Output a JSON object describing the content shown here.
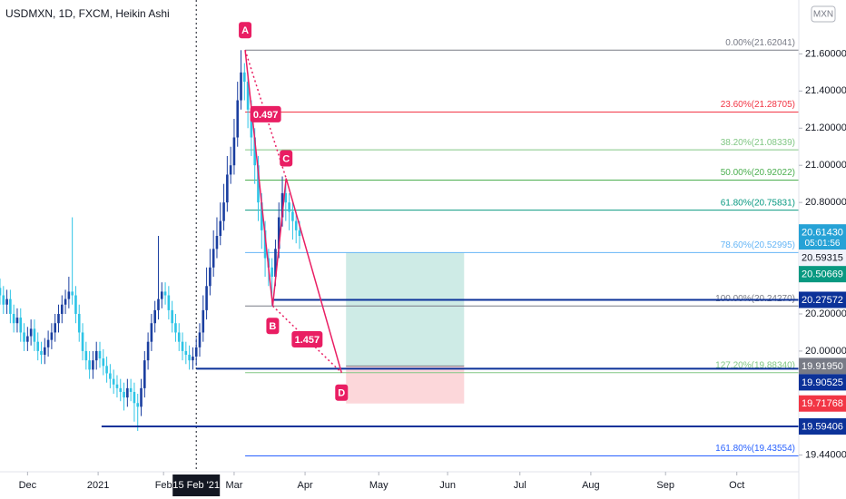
{
  "chart_data": {
    "type": "candlestick",
    "title": "USDMXN, 1D, FXCM, Heikin Ashi",
    "currency": "MXN",
    "up_color": "#1b3fa0",
    "down_color": "#2ec4e6",
    "xlim": [
      0,
      232
    ],
    "ylim": [
      19.35,
      21.89
    ],
    "x": [
      0,
      1,
      2,
      3,
      4,
      5,
      6,
      7,
      8,
      9,
      10,
      11,
      12,
      13,
      14,
      15,
      16,
      17,
      18,
      19,
      20,
      21,
      22,
      23,
      24,
      25,
      26,
      27,
      28,
      29,
      30,
      31,
      32,
      33,
      34,
      35,
      36,
      37,
      38,
      39,
      40,
      41,
      42,
      43,
      44,
      45,
      46,
      47,
      48,
      49,
      50,
      51,
      52,
      53,
      54,
      55,
      56,
      57,
      58,
      59,
      60,
      61,
      62,
      63,
      64,
      65,
      66,
      67,
      68,
      69,
      70,
      71,
      72,
      73,
      74,
      75,
      76,
      77,
      78,
      79,
      80,
      81,
      82,
      83,
      84,
      85,
      86,
      87
    ],
    "open": [
      20.34,
      20.3,
      20.25,
      20.28,
      20.2,
      20.15,
      20.18,
      20.1,
      20.05,
      20.08,
      20.12,
      20.05,
      20.0,
      19.98,
      20.02,
      20.06,
      20.1,
      20.15,
      20.2,
      20.25,
      20.28,
      20.32,
      20.3,
      20.2,
      20.1,
      20.0,
      19.95,
      19.9,
      19.95,
      20.0,
      19.96,
      19.92,
      19.88,
      19.85,
      19.82,
      19.8,
      19.78,
      19.75,
      19.8,
      19.78,
      19.72,
      19.7,
      19.8,
      19.95,
      20.05,
      20.15,
      20.22,
      20.28,
      20.32,
      20.3,
      20.22,
      20.15,
      20.1,
      20.05,
      20.0,
      19.98,
      19.95,
      19.97,
      20.02,
      20.1,
      20.22,
      20.35,
      20.45,
      20.55,
      20.62,
      20.7,
      20.8,
      20.95,
      21.0,
      21.15,
      21.35,
      21.5,
      21.45,
      21.3,
      21.15,
      21.0,
      20.8,
      20.65,
      20.5,
      20.45,
      20.4,
      20.55,
      20.72,
      20.85,
      20.8,
      20.75,
      20.7,
      20.65
    ],
    "high": [
      20.39,
      20.35,
      20.33,
      20.33,
      20.25,
      20.23,
      20.23,
      20.15,
      20.13,
      20.17,
      20.17,
      20.1,
      20.05,
      20.07,
      20.11,
      20.15,
      20.2,
      20.25,
      20.3,
      20.33,
      20.4,
      20.72,
      20.35,
      20.25,
      20.15,
      20.05,
      20.0,
      20.0,
      20.05,
      20.05,
      20.01,
      19.97,
      19.93,
      19.9,
      19.87,
      19.85,
      19.83,
      19.85,
      19.85,
      19.83,
      19.77,
      19.85,
      20.0,
      20.1,
      20.2,
      20.27,
      20.62,
      20.37,
      20.37,
      20.35,
      20.27,
      20.2,
      20.15,
      20.1,
      20.05,
      20.03,
      20.02,
      20.07,
      20.15,
      20.3,
      20.45,
      20.55,
      20.65,
      20.72,
      20.8,
      20.9,
      21.05,
      21.1,
      21.25,
      21.45,
      21.62,
      21.55,
      21.5,
      21.35,
      21.2,
      21.05,
      20.85,
      20.7,
      20.55,
      20.5,
      20.6,
      20.8,
      20.94,
      20.9,
      20.85,
      20.8,
      20.75,
      20.7
    ],
    "low": [
      20.25,
      20.2,
      20.2,
      20.15,
      20.1,
      20.1,
      20.05,
      20.0,
      20.0,
      20.03,
      20.0,
      19.95,
      19.93,
      19.93,
      19.97,
      20.01,
      20.05,
      20.1,
      20.15,
      20.2,
      20.23,
      20.25,
      20.15,
      20.05,
      19.95,
      19.9,
      19.85,
      19.85,
      19.9,
      19.91,
      19.87,
      19.83,
      19.8,
      19.77,
      19.75,
      19.73,
      19.68,
      19.7,
      19.73,
      19.62,
      19.57,
      19.65,
      19.75,
      19.9,
      20.0,
      20.1,
      20.17,
      20.23,
      20.25,
      20.17,
      20.1,
      20.05,
      20.0,
      19.95,
      19.93,
      19.9,
      19.9,
      19.92,
      19.97,
      20.05,
      20.17,
      20.3,
      20.4,
      20.5,
      20.57,
      20.65,
      20.75,
      20.9,
      20.95,
      21.1,
      21.3,
      21.35,
      21.2,
      21.05,
      20.9,
      20.7,
      20.55,
      20.4,
      20.35,
      20.24,
      20.35,
      20.5,
      20.67,
      20.7,
      20.65,
      20.6,
      20.58,
      20.55
    ],
    "close": [
      20.3,
      20.25,
      20.28,
      20.2,
      20.15,
      20.18,
      20.1,
      20.05,
      20.08,
      20.12,
      20.05,
      20.0,
      19.98,
      20.02,
      20.06,
      20.1,
      20.15,
      20.2,
      20.25,
      20.28,
      20.32,
      20.3,
      20.2,
      20.1,
      20.0,
      19.95,
      19.9,
      19.95,
      20.0,
      19.96,
      19.92,
      19.88,
      19.85,
      19.82,
      19.8,
      19.78,
      19.75,
      19.8,
      19.78,
      19.72,
      19.7,
      19.8,
      19.95,
      20.05,
      20.15,
      20.22,
      20.28,
      20.32,
      20.3,
      20.22,
      20.15,
      20.1,
      20.05,
      20.0,
      19.98,
      19.95,
      19.97,
      20.02,
      20.1,
      20.22,
      20.35,
      20.45,
      20.55,
      20.62,
      20.7,
      20.8,
      20.95,
      21.0,
      21.15,
      21.35,
      21.5,
      21.45,
      21.3,
      21.15,
      21.0,
      20.8,
      20.65,
      20.5,
      20.45,
      20.4,
      20.55,
      20.72,
      20.85,
      20.8,
      20.75,
      20.7,
      20.65,
      20.62
    ],
    "yticks": [
      {
        "value": 21.6,
        "label": "21.60000"
      },
      {
        "value": 21.4,
        "label": "21.40000"
      },
      {
        "value": 21.2,
        "label": "21.20000"
      },
      {
        "value": 21.0,
        "label": "21.00000"
      },
      {
        "value": 20.8,
        "label": "20.80000"
      },
      {
        "value": 20.2,
        "label": "20.20000"
      },
      {
        "value": 20.0,
        "label": "20.00000"
      },
      {
        "value": 19.44,
        "label": "19.44000"
      }
    ],
    "xticks": [
      {
        "value": 8,
        "label": "Dec"
      },
      {
        "value": 28.5,
        "label": "2021"
      },
      {
        "value": 47.5,
        "label": "Feb"
      },
      {
        "value": 68,
        "label": "Mar"
      },
      {
        "value": 88.6,
        "label": "Apr"
      },
      {
        "value": 110,
        "label": "May"
      },
      {
        "value": 130,
        "label": "Jun"
      },
      {
        "value": 151,
        "label": "Jul"
      },
      {
        "value": 171.6,
        "label": "Aug"
      },
      {
        "value": 193.3,
        "label": "Sep"
      },
      {
        "value": 214,
        "label": "Oct"
      }
    ],
    "crosshair": {
      "x": 57,
      "label": "15 Feb '21"
    },
    "fib_levels": [
      {
        "value": 21.62041,
        "label": "0.00%(21.62041)",
        "color": "#787b86"
      },
      {
        "value": 21.28705,
        "label": "23.60%(21.28705)",
        "color": "#f23645"
      },
      {
        "value": 21.08339,
        "label": "38.20%(21.08339)",
        "color": "#81c784"
      },
      {
        "value": 20.92022,
        "label": "50.00%(20.92022)",
        "color": "#4caf50"
      },
      {
        "value": 20.75831,
        "label": "61.80%(20.75831)",
        "color": "#089981"
      },
      {
        "value": 20.52995,
        "label": "78.60%(20.52995)",
        "color": "#64b5f6"
      },
      {
        "value": 20.2427,
        "label": "100.00%(20.24270)",
        "color": "#787b86"
      },
      {
        "value": 19.8834,
        "label": "127.20%(19.88340)",
        "color": "#81c784"
      },
      {
        "value": 19.43554,
        "label": "161.80%(19.43554)",
        "color": "#2962ff"
      }
    ],
    "pattern": [
      {
        "label": "A",
        "x": 71.2,
        "value": 21.62041
      },
      {
        "label": "B",
        "x": 79.2,
        "value": 20.2427
      },
      {
        "label": "C",
        "x": 83.1,
        "value": 20.93
      },
      {
        "label": "D",
        "x": 99.2,
        "value": 19.8834
      }
    ],
    "ratios": [
      0.497,
      1.457
    ],
    "pattern_color": "#e91e63",
    "position": {
      "x_start": 100.5,
      "x_end": 134.8,
      "target": 20.53,
      "entry": 19.9195,
      "stop": 19.71768
    },
    "hlines": [
      {
        "value": 20.27572,
        "from": 79
      },
      {
        "value": 19.90525,
        "from": 57
      },
      {
        "value": 19.59406,
        "from": 29.5
      }
    ],
    "hline_color": "#0c3299",
    "price_tags": [
      {
        "value": 20.6143,
        "label": "20.61430",
        "sub": "05:01:56",
        "color": "#26a2d6",
        "text_color": "#ffffff"
      },
      {
        "value": 20.59315,
        "label": "20.59315",
        "color": "#f0f3fa",
        "text_color": "#131722"
      },
      {
        "value": 20.50669,
        "label": "20.50669",
        "color": "#089981",
        "text_color": "#ffffff"
      },
      {
        "value": 20.27572,
        "label": "20.27572",
        "color": "#0c3299",
        "text_color": "#ffffff"
      },
      {
        "value": 19.9195,
        "label": "19.91950",
        "color": "#787b86",
        "text_color": "#ffffff"
      },
      {
        "value": 19.90525,
        "label": "19.90525",
        "color": "#0c3299",
        "text_color": "#ffffff"
      },
      {
        "value": 19.71768,
        "label": "19.71768",
        "color": "#f23645",
        "text_color": "#ffffff"
      },
      {
        "value": 19.59406,
        "label": "19.59406",
        "color": "#0c3299",
        "text_color": "#ffffff"
      }
    ]
  }
}
